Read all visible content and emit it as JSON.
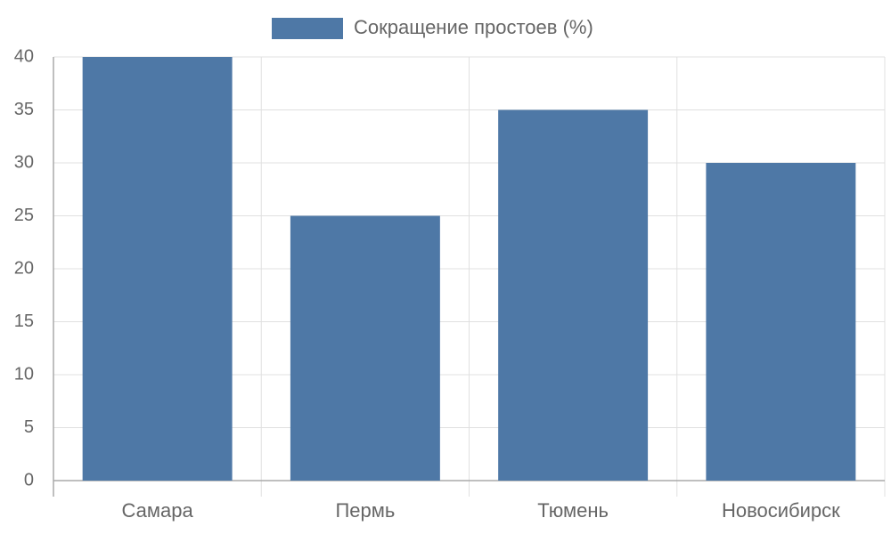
{
  "chart_data": {
    "type": "bar",
    "categories": [
      "Самара",
      "Пермь",
      "Тюмень",
      "Новосибирск"
    ],
    "series": [
      {
        "name": "Сокращение простоев (%)",
        "color": "#4e78a6",
        "values": [
          40,
          25,
          35,
          30
        ]
      }
    ],
    "ylim": [
      0,
      40
    ],
    "yticks": [
      0,
      5,
      10,
      15,
      20,
      25,
      30,
      35,
      40
    ],
    "grid": true,
    "legend": "top"
  }
}
